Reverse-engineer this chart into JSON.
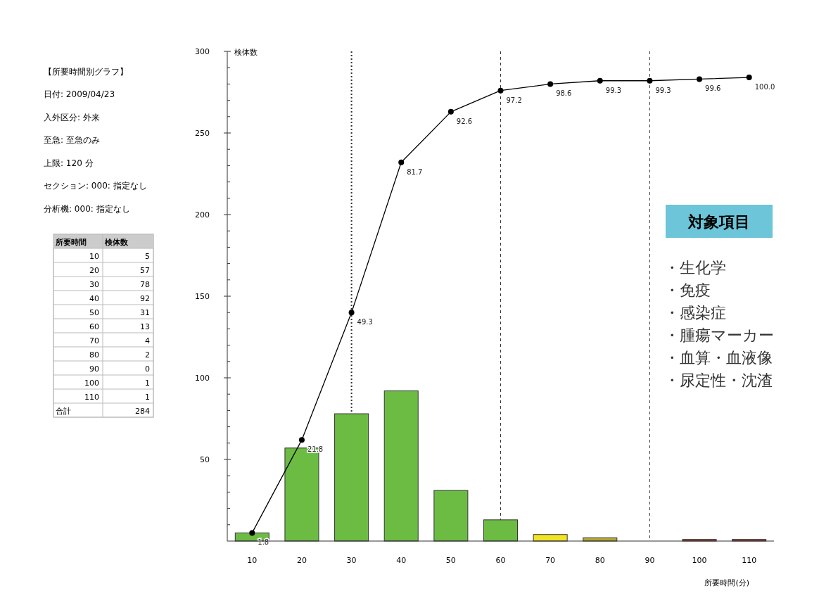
{
  "chart_data": {
    "type": "bar",
    "title": "【所要時間別グラフ】",
    "xlabel": "所要時間(分)",
    "ylabel": "検体数",
    "categories": [
      "10",
      "20",
      "30",
      "40",
      "50",
      "60",
      "70",
      "80",
      "90",
      "100",
      "110"
    ],
    "series": [
      {
        "colors": [
          "#6cbc44",
          "#6cbc44",
          "#6cbc44",
          "#6cbc44",
          "#6cbc44",
          "#6cbc44",
          "#f2e424",
          "#b4aa2c",
          "#6cbc44",
          "#b43a34",
          "#b43a34"
        ],
        "values": [
          5,
          57,
          78,
          92,
          31,
          13,
          4,
          2,
          0,
          1,
          1
        ]
      },
      {
        "type": "line",
        "color": "#000000",
        "values": [
          5,
          62,
          140,
          232,
          263,
          276,
          280,
          282,
          282,
          283,
          284
        ]
      }
    ],
    "ylim": [
      0,
      300
    ],
    "yticks": [
      {
        "value": 10,
        "label": null
      },
      {
        "value": 20,
        "label": null
      },
      {
        "value": 30,
        "label": null
      },
      {
        "value": 40,
        "label": null
      },
      50,
      {
        "value": 60,
        "label": null
      },
      {
        "value": 70,
        "label": null
      },
      {
        "value": 80,
        "label": null
      },
      {
        "value": 90,
        "label": null
      },
      100,
      {
        "value": 110,
        "label": null
      },
      {
        "value": 120,
        "label": null
      },
      {
        "value": 130,
        "label": null
      },
      {
        "value": 140,
        "label": null
      },
      150,
      {
        "value": 160,
        "label": null
      },
      {
        "value": 170,
        "label": null
      },
      {
        "value": 180,
        "label": null
      },
      {
        "value": 190,
        "label": null
      },
      200,
      {
        "value": 210,
        "label": null
      },
      {
        "value": 220,
        "label": null
      },
      {
        "value": 230,
        "label": null
      },
      {
        "value": 240,
        "label": null
      },
      250,
      {
        "value": 260,
        "label": null
      },
      {
        "value": 270,
        "label": null
      },
      {
        "value": 280,
        "label": null
      },
      {
        "value": 290,
        "label": null
      },
      300
    ],
    "ref_lines": [
      {
        "axis": "x",
        "value": "30",
        "line_style": "dotted"
      },
      {
        "axis": "x",
        "value": "60",
        "line_style": "dashed"
      },
      {
        "axis": "x",
        "value": "90",
        "line_style": "dashed"
      }
    ],
    "marker": "circle",
    "grid": false,
    "annotations": [
      "日付: 2009/04/23",
      "入外区分: 外来",
      "至急: 至急のみ",
      "上限: 120 分",
      "セクション: 000: 指定なし",
      "分析機: 000: 指定なし",
      "対象項目",
      "・生化学",
      "・免疫",
      "・感染症",
      "・腫瘍マーカー",
      "・血算・血液像",
      "・尿定性・沈渣",
      "所要時間",
      "検体数",
      "合計",
      "284",
      "5",
      "57",
      "78",
      "92",
      "31",
      "13",
      "4",
      "2",
      "0",
      "1",
      "1",
      {
        "text": "1.8",
        "x": "10",
        "y": 5
      },
      {
        "text": "21.8",
        "x": "20",
        "y": 62
      },
      {
        "text": "49.3",
        "x": "30",
        "y": 140
      },
      {
        "text": "81.7",
        "x": "40",
        "y": 232
      },
      {
        "text": "92.6",
        "x": "50",
        "y": 263
      },
      {
        "text": "97.2",
        "x": "60",
        "y": 276
      },
      {
        "text": "98.6",
        "x": "70",
        "y": 280
      },
      {
        "text": "99.3",
        "x": "80",
        "y": 282
      },
      {
        "text": "99.3",
        "x": "90",
        "y": 282
      },
      {
        "text": "99.6",
        "x": "100",
        "y": 283
      },
      {
        "text": "100.0",
        "x": "110",
        "y": 284
      }
    ]
  }
}
